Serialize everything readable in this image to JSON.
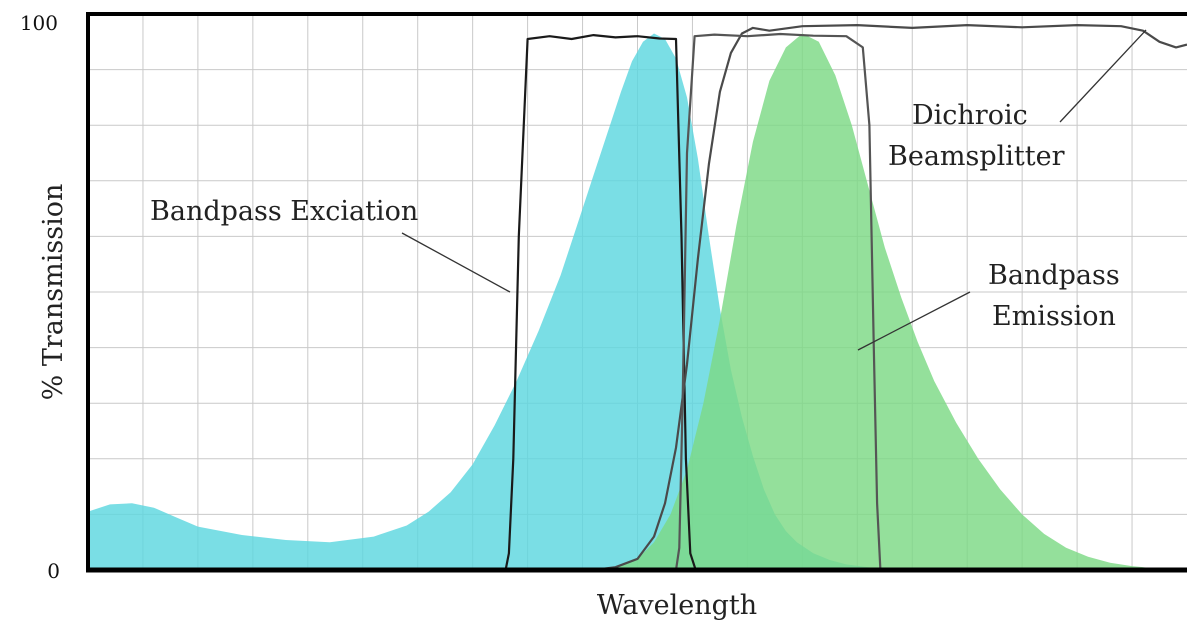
{
  "chart_data": {
    "type": "area",
    "xlabel": "Wavelength",
    "ylabel": "% Transmission",
    "ylim": [
      0,
      100
    ],
    "y_ticks": [
      "0",
      "100"
    ],
    "x_ticks": [],
    "xlim": [
      0,
      100
    ],
    "grid": true,
    "annotations": {
      "excitation": "Bandpass Exciation",
      "dichroic_line1": "Dichroic",
      "dichroic_line2": "Beamsplitter",
      "emission_line1": "Bandpass",
      "emission_line2": "Emission"
    },
    "series": [
      {
        "kind": "fill",
        "color": "#5dd7df",
        "x": [
          0,
          2,
          4,
          6,
          8,
          10,
          14,
          18,
          22,
          26,
          29,
          31,
          33,
          35,
          37,
          39,
          41,
          43,
          44.5,
          46,
          47.5,
          48.5,
          49.5,
          50.5,
          51.5,
          52.5,
          53.5,
          54.5,
          55.5,
          56.5,
          57.5,
          58.5,
          59.5,
          60.5,
          61.5,
          62.5,
          63.5,
          64.5,
          66,
          67.5,
          69,
          71,
          73,
          75,
          77
        ],
        "y": [
          10.5,
          11.8,
          12.0,
          11.2,
          9.5,
          7.8,
          6.3,
          5.4,
          5.0,
          6.0,
          8.0,
          10.5,
          14.0,
          19.0,
          26.0,
          34.0,
          43.0,
          53.0,
          62.0,
          71.0,
          80.0,
          86.0,
          91.5,
          95.0,
          96.5,
          95.5,
          92.0,
          85.0,
          74.0,
          60.0,
          47.0,
          36.0,
          27.5,
          20.5,
          14.5,
          10.0,
          7.0,
          5.0,
          3.0,
          1.8,
          1.0,
          0.5,
          0.2,
          0.05,
          0
        ]
      },
      {
        "kind": "fill",
        "color": "#7dd985",
        "x": [
          46,
          48,
          50,
          51.5,
          53,
          54.5,
          56,
          57.5,
          59,
          60.5,
          62,
          63.5,
          65,
          66.5,
          68,
          69.5,
          71,
          72.5,
          74,
          75.5,
          77,
          79,
          81,
          83,
          85,
          87,
          89,
          91,
          93,
          95,
          97,
          99,
          100
        ],
        "y": [
          0,
          0.5,
          2.0,
          5.0,
          10.0,
          18.0,
          30.0,
          45.0,
          62.0,
          77.0,
          88.0,
          94.0,
          96.5,
          95.0,
          89.0,
          80.0,
          69.0,
          58.0,
          49.0,
          41.0,
          34.0,
          26.5,
          20.0,
          14.5,
          10.0,
          6.5,
          4.0,
          2.4,
          1.3,
          0.7,
          0.3,
          0.1,
          0
        ]
      },
      {
        "kind": "line",
        "name": "Bandpass Exciation",
        "color": "#1a1a1a",
        "x": [
          0,
          30,
          38,
          38.3,
          38.7,
          39.2,
          40,
          42,
          44,
          46,
          48,
          50,
          52,
          53.5,
          54,
          54.4,
          54.8,
          55.3,
          56,
          100
        ],
        "y": [
          0,
          0,
          0,
          3,
          20,
          60,
          95.5,
          96.0,
          95.5,
          96.2,
          95.8,
          96.0,
          95.6,
          95.5,
          60,
          20,
          3,
          0,
          0,
          0
        ]
      },
      {
        "kind": "line",
        "name": "Dichroic Beamsplitter",
        "color": "#4a4a4a",
        "x": [
          0,
          42,
          46,
          48,
          50,
          51.5,
          52.5,
          53.5,
          54.5,
          55.5,
          56.5,
          57.5,
          58.5,
          59.5,
          60.5,
          62,
          65,
          70,
          75,
          80,
          85,
          90,
          94,
          96,
          97.5,
          99,
          100
        ],
        "y": [
          0,
          0,
          0,
          0.5,
          2,
          6,
          12,
          22,
          37,
          56,
          73,
          86,
          93,
          96.5,
          97.5,
          97.0,
          97.8,
          98.0,
          97.5,
          98.0,
          97.6,
          98.0,
          97.8,
          97.0,
          95.0,
          94.0,
          94.5
        ]
      },
      {
        "kind": "line",
        "name": "Bandpass Emission",
        "color": "#555555",
        "x": [
          0,
          52,
          53.5,
          53.8,
          54.1,
          54.5,
          55.2,
          57,
          60,
          63,
          66,
          69,
          70.5,
          71.1,
          71.5,
          71.8,
          72.1,
          73,
          100
        ],
        "y": [
          0,
          0,
          0,
          4,
          30,
          75,
          96.0,
          96.3,
          96.0,
          96.4,
          96.1,
          96.0,
          94.0,
          80,
          40,
          12,
          0,
          0,
          0
        ]
      }
    ]
  }
}
